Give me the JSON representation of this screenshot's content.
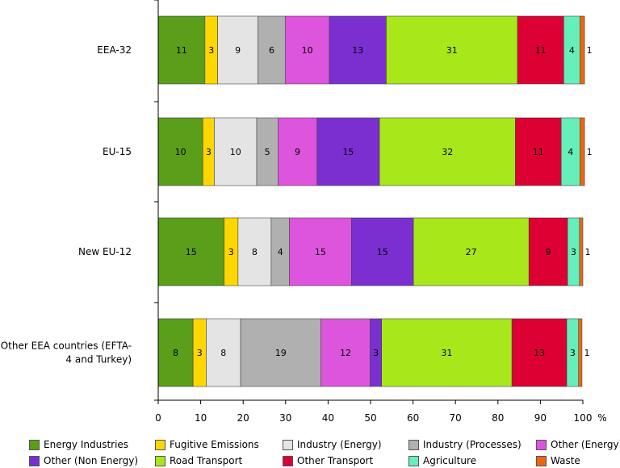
{
  "chart_data": {
    "type": "bar",
    "orientation": "horizontal",
    "stacked": true,
    "categories": [
      "EEA-32",
      "EU-15",
      "New EU-12",
      "Other EEA countries (EFTA-4 and Turkey)"
    ],
    "category_lines": [
      [
        "EEA-32"
      ],
      [
        "EU-15"
      ],
      [
        "New EU-12"
      ],
      [
        "Other EEA countries (EFTA-",
        "4 and Turkey)"
      ]
    ],
    "xlim": [
      0,
      100
    ],
    "xticks": [
      0,
      10,
      20,
      30,
      40,
      50,
      60,
      70,
      80,
      90,
      100
    ],
    "xunit": "%",
    "grid": false,
    "legend_position": "bottom",
    "series": [
      {
        "name": "Energy Industries",
        "color": "#5a9e1a",
        "values": [
          11,
          10.5,
          15.5,
          8.2
        ],
        "labels": [
          "11",
          "10",
          "15",
          "8"
        ]
      },
      {
        "name": "Fugitive Emissions",
        "color": "#ffd700",
        "values": [
          3,
          2.7,
          3.3,
          3.1
        ],
        "labels": [
          "3",
          "3",
          "3",
          "3"
        ]
      },
      {
        "name": "Industry (Energy)",
        "color": "#e4e4e4",
        "values": [
          9.5,
          10,
          7.8,
          8.1
        ],
        "labels": [
          "9",
          "10",
          "8",
          "8"
        ]
      },
      {
        "name": "Industry (Processes)",
        "color": "#b0b0b0",
        "values": [
          6.4,
          5,
          4.3,
          18.9
        ],
        "labels": [
          "6",
          "5",
          "4",
          "19"
        ]
      },
      {
        "name": "Other (Energy)",
        "color": "#dd55dd",
        "values": [
          10.4,
          9.2,
          14.6,
          11.6
        ],
        "labels": [
          "10",
          "9",
          "15",
          "12"
        ]
      },
      {
        "name": "Other (Non Energy)",
        "color": "#7b2fd1",
        "values": [
          13.4,
          14.7,
          14.6,
          2.7
        ],
        "labels": [
          "13",
          "15",
          "15",
          "3"
        ]
      },
      {
        "name": "Road Transport",
        "color": "#a8e81a",
        "values": [
          30.9,
          32,
          27.2,
          30.7
        ],
        "labels": [
          "31",
          "32",
          "27",
          "31"
        ]
      },
      {
        "name": "Other Transport",
        "color": "#dd0033",
        "values": [
          10.9,
          10.8,
          9.1,
          12.9
        ],
        "labels": [
          "11",
          "11",
          "9",
          "13"
        ]
      },
      {
        "name": "Agriculture",
        "color": "#66eebb",
        "values": [
          3.8,
          4.4,
          2.8,
          2.8
        ],
        "labels": [
          "4",
          "4",
          "3",
          "3"
        ]
      },
      {
        "name": "Waste",
        "color": "#ee6611",
        "values": [
          1.1,
          1.1,
          0.8,
          0.8
        ],
        "labels": [
          "1",
          "1",
          "1",
          "1"
        ]
      }
    ]
  }
}
